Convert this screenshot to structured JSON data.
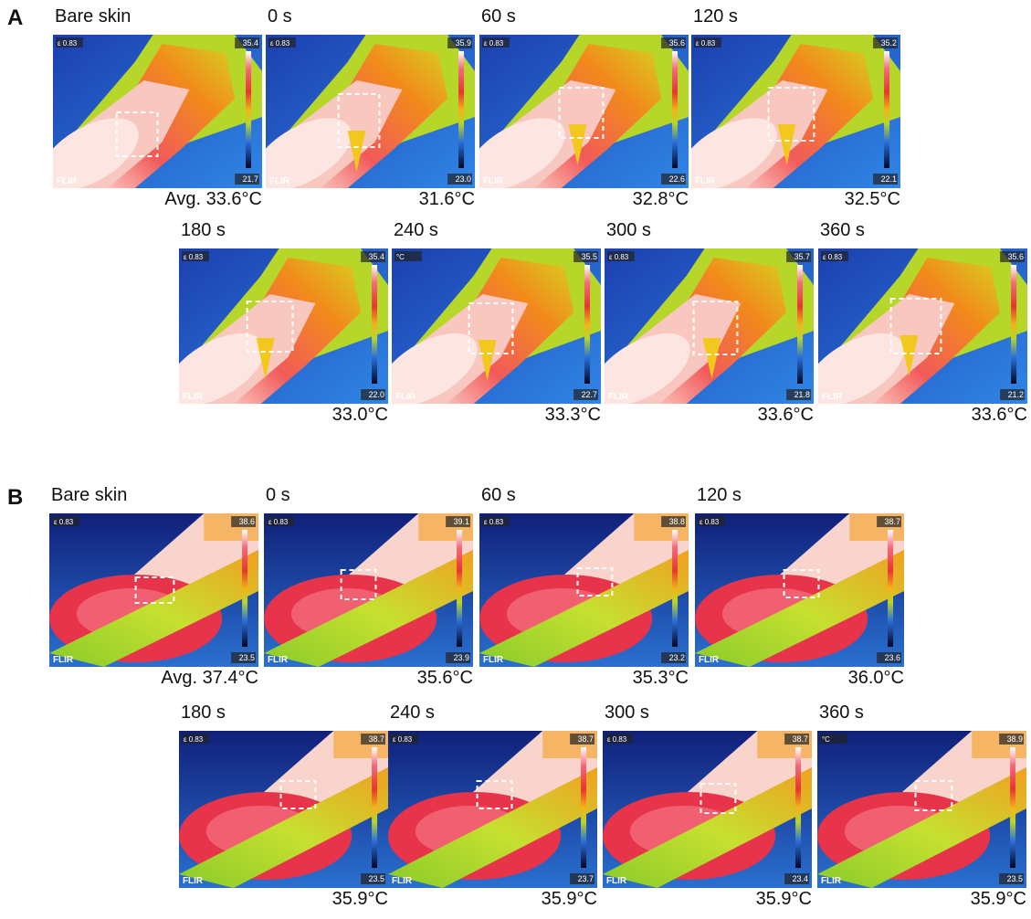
{
  "brand": "FLIR",
  "panels": [
    {
      "letter": "A",
      "frames": [
        {
          "time": "Bare skin",
          "emissivity": "ε 0.83",
          "max": "35.4",
          "min": "21.7",
          "avg": "Avg. 33.6°C"
        },
        {
          "time": "0 s",
          "emissivity": "ε 0.83",
          "max": "35.9",
          "min": "23.0",
          "avg": "31.6°C"
        },
        {
          "time": "60 s",
          "emissivity": "ε 0.83",
          "max": "35.6",
          "min": "22.6",
          "avg": "32.8°C"
        },
        {
          "time": "120 s",
          "emissivity": "ε 0.83",
          "max": "35.2",
          "min": "22.1",
          "avg": "32.5°C"
        },
        {
          "time": "180 s",
          "emissivity": "ε 0.83",
          "max": "35.4",
          "min": "22.0",
          "avg": "33.0°C"
        },
        {
          "time": "240 s",
          "emissivity": "°C",
          "max": "35.5",
          "min": "22.7",
          "avg": "33.3°C"
        },
        {
          "time": "300 s",
          "emissivity": "ε 0.83",
          "max": "35.7",
          "min": "21.8",
          "avg": "33.6°C"
        },
        {
          "time": "360 s",
          "emissivity": "ε 0.83",
          "max": "35.6",
          "min": "21.2",
          "avg": "33.6°C"
        }
      ]
    },
    {
      "letter": "B",
      "frames": [
        {
          "time": "Bare skin",
          "emissivity": "ε 0.83",
          "max": "38.6",
          "min": "23.5",
          "avg": "Avg. 37.4°C"
        },
        {
          "time": "0 s",
          "emissivity": "ε 0.83",
          "max": "39.1",
          "min": "23.9",
          "avg": "35.6°C"
        },
        {
          "time": "60 s",
          "emissivity": "ε 0.83",
          "max": "38.8",
          "min": "23.2",
          "avg": "35.3°C"
        },
        {
          "time": "120 s",
          "emissivity": "ε 0.83",
          "max": "38.7",
          "min": "23.6",
          "avg": "36.0°C"
        },
        {
          "time": "180 s",
          "emissivity": "ε 0.83",
          "max": "38.7",
          "min": "23.5",
          "avg": "35.9°C"
        },
        {
          "time": "240 s",
          "emissivity": "ε 0.83",
          "max": "38.7",
          "min": "23.7",
          "avg": "35.9°C"
        },
        {
          "time": "300 s",
          "emissivity": "ε 0.83",
          "max": "38.7",
          "min": "23.4",
          "avg": "35.9°C"
        },
        {
          "time": "360 s",
          "emissivity": "°C",
          "max": "38.9",
          "min": "23.5",
          "avg": "35.9°C"
        }
      ]
    }
  ]
}
